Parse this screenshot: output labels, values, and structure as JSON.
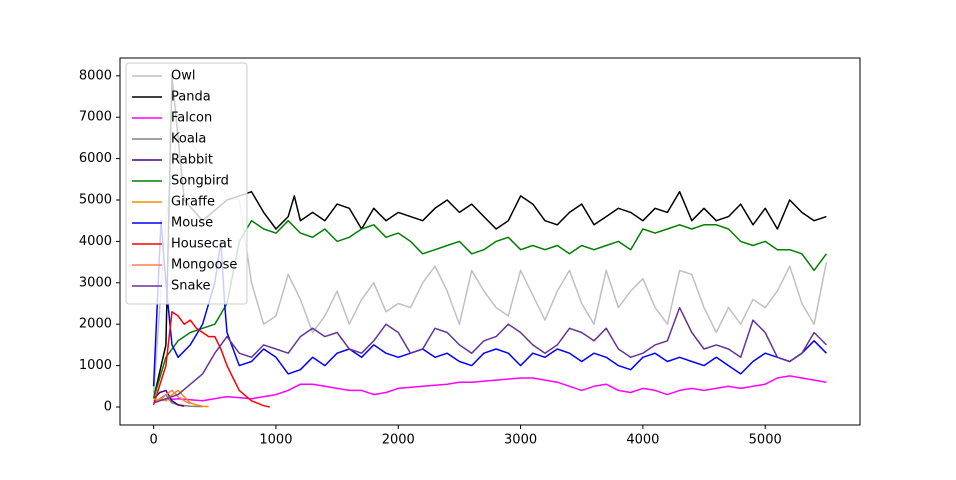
{
  "chart_data": {
    "type": "line",
    "xlim": [
      -275,
      5775
    ],
    "ylim": [
      -435,
      8430
    ],
    "xticks": [
      0,
      1000,
      2000,
      3000,
      4000,
      5000
    ],
    "yticks": [
      0,
      1000,
      2000,
      3000,
      4000,
      5000,
      6000,
      7000,
      8000
    ],
    "grid": false,
    "legend": "upper left",
    "series": [
      {
        "name": "Owl",
        "color": "#c0c0c0",
        "x": [
          0,
          100,
          200,
          300,
          400,
          500,
          600,
          700,
          800,
          900,
          1000,
          1100,
          1200,
          1300,
          1400,
          1500,
          1600,
          1700,
          1800,
          1900,
          2000,
          2100,
          2200,
          2300,
          2400,
          2500,
          2600,
          2700,
          2800,
          2900,
          3000,
          3100,
          3200,
          3300,
          3400,
          3500,
          3600,
          3700,
          3800,
          3900,
          4000,
          4100,
          4200,
          4300,
          4400,
          4500,
          4600,
          4700,
          4800,
          4900,
          5000,
          5100,
          5200,
          5300,
          5400,
          5500
        ],
        "values": [
          300,
          4500,
          6800,
          6400,
          6000,
          5500,
          5100,
          5000,
          3000,
          2000,
          2200,
          3200,
          2600,
          1800,
          2200,
          2800,
          2000,
          2600,
          3000,
          2300,
          2500,
          2400,
          3000,
          3400,
          2800,
          2000,
          3300,
          2800,
          2400,
          2200,
          3300,
          2700,
          2100,
          2800,
          3300,
          2500,
          2000,
          3300,
          2400,
          2800,
          3100,
          2400,
          2000,
          3300,
          3200,
          2400,
          1800,
          2400,
          2000,
          2600,
          2400,
          2800,
          3400,
          2500,
          2000,
          3500
        ]
      },
      {
        "name": "Panda",
        "color": "#000000",
        "x": [
          0,
          100,
          150,
          250,
          400,
          600,
          700,
          800,
          900,
          1000,
          1100,
          1150,
          1200,
          1300,
          1400,
          1500,
          1600,
          1700,
          1800,
          1900,
          2000,
          2100,
          2200,
          2300,
          2400,
          2500,
          2600,
          2700,
          2800,
          2900,
          3000,
          3100,
          3200,
          3300,
          3400,
          3500,
          3600,
          3700,
          3800,
          3900,
          4000,
          4100,
          4200,
          4300,
          4400,
          4500,
          4600,
          4700,
          4800,
          4900,
          5000,
          5100,
          5200,
          5300,
          5400,
          5500
        ],
        "values": [
          200,
          1500,
          8000,
          5000,
          4500,
          5000,
          5100,
          5200,
          4700,
          4300,
          4600,
          5100,
          4500,
          4700,
          4500,
          4900,
          4800,
          4300,
          4800,
          4500,
          4700,
          4600,
          4500,
          4800,
          5000,
          4700,
          4900,
          4600,
          4300,
          4500,
          5100,
          4900,
          4500,
          4400,
          4700,
          4900,
          4400,
          4600,
          4800,
          4700,
          4500,
          4800,
          4700,
          5200,
          4500,
          4800,
          4500,
          4600,
          4900,
          4400,
          4800,
          4300,
          5000,
          4700,
          4500,
          4600
        ]
      },
      {
        "name": "Falcon",
        "color": "#ff00ff",
        "x": [
          0,
          200,
          400,
          600,
          800,
          1000,
          1100,
          1200,
          1300,
          1400,
          1500,
          1600,
          1700,
          1800,
          1900,
          2000,
          2200,
          2400,
          2500,
          2600,
          2800,
          3000,
          3100,
          3200,
          3300,
          3400,
          3500,
          3600,
          3700,
          3800,
          3900,
          4000,
          4100,
          4200,
          4300,
          4400,
          4500,
          4600,
          4700,
          4800,
          4900,
          5000,
          5100,
          5200,
          5300,
          5400,
          5500
        ],
        "values": [
          150,
          200,
          150,
          250,
          200,
          300,
          400,
          550,
          550,
          500,
          450,
          400,
          400,
          300,
          350,
          450,
          500,
          550,
          600,
          600,
          650,
          700,
          700,
          650,
          600,
          500,
          400,
          500,
          550,
          400,
          350,
          450,
          400,
          300,
          400,
          450,
          400,
          450,
          500,
          450,
          500,
          550,
          700,
          750,
          700,
          650,
          600
        ]
      },
      {
        "name": "Koala",
        "color": "#808080",
        "x": [
          0,
          50,
          100,
          150,
          200,
          300,
          400
        ],
        "values": [
          100,
          200,
          300,
          100,
          50,
          20,
          10
        ]
      },
      {
        "name": "Rabbit",
        "color": "#4b0082",
        "x": [
          0,
          50,
          100,
          150,
          200,
          250
        ],
        "values": [
          200,
          350,
          400,
          150,
          50,
          20
        ]
      },
      {
        "name": "Songbird",
        "color": "#008000",
        "x": [
          0,
          100,
          200,
          300,
          400,
          500,
          600,
          700,
          800,
          900,
          1000,
          1100,
          1200,
          1300,
          1400,
          1500,
          1600,
          1700,
          1800,
          1900,
          2000,
          2100,
          2200,
          2300,
          2400,
          2500,
          2600,
          2700,
          2800,
          2900,
          3000,
          3100,
          3200,
          3300,
          3400,
          3500,
          3600,
          3700,
          3800,
          3900,
          4000,
          4100,
          4200,
          4300,
          4400,
          4500,
          4600,
          4700,
          4800,
          4900,
          5000,
          5100,
          5200,
          5300,
          5400,
          5500
        ],
        "values": [
          200,
          1200,
          1600,
          1800,
          1900,
          2000,
          2500,
          4000,
          4500,
          4300,
          4200,
          4500,
          4200,
          4100,
          4300,
          4000,
          4100,
          4300,
          4400,
          4100,
          4200,
          4000,
          3700,
          3800,
          3900,
          4000,
          3700,
          3800,
          4000,
          4100,
          3800,
          3900,
          3800,
          3900,
          3700,
          3900,
          3800,
          3900,
          4000,
          3800,
          4300,
          4200,
          4300,
          4400,
          4300,
          4400,
          4400,
          4300,
          4000,
          3900,
          4000,
          3800,
          3800,
          3700,
          3300,
          3700
        ]
      },
      {
        "name": "Giraffe",
        "color": "#ff8c00",
        "x": [
          0,
          50,
          100,
          150,
          200,
          250,
          300,
          350,
          400,
          450
        ],
        "values": [
          100,
          200,
          150,
          300,
          400,
          250,
          100,
          50,
          20,
          10
        ]
      },
      {
        "name": "Mouse",
        "color": "#0000ff",
        "x": [
          0,
          30,
          60,
          100,
          150,
          200,
          300,
          400,
          500,
          550,
          580,
          600,
          700,
          800,
          900,
          1000,
          1100,
          1200,
          1300,
          1400,
          1500,
          1600,
          1700,
          1800,
          1900,
          2000,
          2100,
          2200,
          2300,
          2400,
          2500,
          2600,
          2700,
          2800,
          2900,
          3000,
          3100,
          3200,
          3300,
          3400,
          3500,
          3600,
          3700,
          3800,
          3900,
          4000,
          4100,
          4200,
          4300,
          4400,
          4500,
          4600,
          4700,
          4800,
          4900,
          5000,
          5100,
          5200,
          5300,
          5400,
          5500
        ],
        "values": [
          500,
          2500,
          4500,
          3000,
          1500,
          1200,
          1500,
          2000,
          3000,
          4000,
          2500,
          1800,
          1000,
          1100,
          1400,
          1200,
          800,
          900,
          1200,
          1000,
          1300,
          1400,
          1200,
          1500,
          1300,
          1200,
          1300,
          1400,
          1200,
          1300,
          1100,
          1000,
          1300,
          1400,
          1300,
          1000,
          1300,
          1200,
          1400,
          1300,
          1100,
          1300,
          1200,
          1000,
          900,
          1200,
          1300,
          1100,
          1200,
          1100,
          1000,
          1200,
          1000,
          800,
          1100,
          1300,
          1200,
          1100,
          1300,
          1600,
          1300
        ]
      },
      {
        "name": "Housecat",
        "color": "#ff0000",
        "x": [
          0,
          100,
          150,
          200,
          250,
          300,
          350,
          400,
          450,
          500,
          550,
          600,
          650,
          700,
          800,
          900,
          950
        ],
        "values": [
          50,
          1000,
          2300,
          2200,
          2000,
          2100,
          1900,
          1800,
          1700,
          1700,
          1400,
          1000,
          700,
          400,
          150,
          30,
          0
        ]
      },
      {
        "name": "Mongoose",
        "color": "#ff7f50",
        "x": [
          0,
          50,
          100,
          150,
          200,
          250,
          300
        ],
        "values": [
          200,
          150,
          300,
          400,
          250,
          150,
          80
        ]
      },
      {
        "name": "Snake",
        "color": "#663399",
        "x": [
          0,
          200,
          400,
          500,
          600,
          700,
          800,
          900,
          1000,
          1100,
          1200,
          1300,
          1400,
          1500,
          1600,
          1700,
          1800,
          1900,
          2000,
          2100,
          2200,
          2300,
          2400,
          2500,
          2600,
          2700,
          2800,
          2900,
          3000,
          3100,
          3200,
          3300,
          3400,
          3500,
          3600,
          3700,
          3800,
          3900,
          4000,
          4100,
          4200,
          4300,
          4400,
          4500,
          4600,
          4700,
          4800,
          4900,
          5000,
          5100,
          5200,
          5300,
          5400,
          5500
        ],
        "values": [
          100,
          300,
          800,
          1300,
          1700,
          1300,
          1200,
          1500,
          1400,
          1300,
          1700,
          1900,
          1700,
          1800,
          1400,
          1300,
          1600,
          2000,
          1800,
          1300,
          1400,
          1900,
          1800,
          1500,
          1300,
          1600,
          1700,
          2000,
          1800,
          1500,
          1300,
          1500,
          1900,
          1800,
          1600,
          1900,
          1400,
          1200,
          1300,
          1500,
          1600,
          2400,
          1800,
          1400,
          1500,
          1400,
          1200,
          2100,
          1800,
          1200,
          1100,
          1300,
          1800,
          1500
        ]
      }
    ]
  }
}
